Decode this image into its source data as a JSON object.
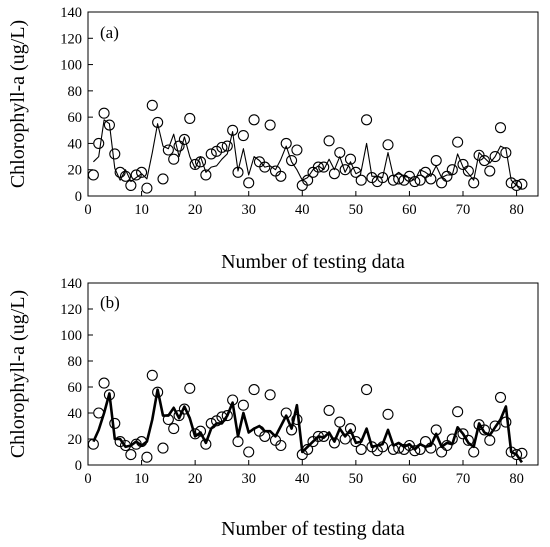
{
  "chart_data": [
    {
      "type": "scatter",
      "panel_label": "(a)",
      "xlabel": "Number of testing data",
      "ylabel": "Chlorophyll-a (ug/L)",
      "xlim": [
        0,
        84
      ],
      "ylim": [
        0,
        140
      ],
      "xticks": [
        0,
        10,
        20,
        30,
        40,
        50,
        60,
        70,
        80
      ],
      "yticks": [
        0,
        20,
        40,
        60,
        80,
        100,
        120,
        140
      ],
      "grid": false,
      "series": [
        {
          "style": "markers",
          "x": [
            1,
            2,
            3,
            4,
            5,
            6,
            7,
            8,
            9,
            10,
            11,
            12,
            13,
            14,
            15,
            16,
            17,
            18,
            19,
            20,
            21,
            22,
            23,
            24,
            25,
            26,
            27,
            28,
            29,
            30,
            31,
            32,
            33,
            34,
            35,
            36,
            37,
            38,
            39,
            40,
            41,
            42,
            43,
            44,
            45,
            46,
            47,
            48,
            49,
            50,
            51,
            52,
            53,
            54,
            55,
            56,
            57,
            58,
            59,
            60,
            61,
            62,
            63,
            64,
            65,
            66,
            67,
            68,
            69,
            70,
            71,
            72,
            73,
            74,
            75,
            76,
            77,
            78,
            79,
            80,
            81
          ],
          "y": [
            16,
            40,
            63,
            54,
            32,
            18,
            15,
            8,
            16,
            18,
            6,
            69,
            56,
            13,
            35,
            28,
            38,
            43,
            59,
            24,
            26,
            16,
            32,
            34,
            37,
            38,
            50,
            18,
            46,
            10,
            58,
            26,
            22,
            54,
            19,
            15,
            40,
            27,
            35,
            8,
            12,
            18,
            22,
            22,
            42,
            17,
            33,
            20,
            28,
            18,
            12,
            58,
            14,
            11,
            14,
            39,
            12,
            13,
            12,
            15,
            11,
            12,
            18,
            13,
            27,
            10,
            15,
            20,
            41,
            24,
            19,
            10,
            31,
            27,
            19,
            30,
            52,
            33,
            10,
            8,
            9
          ]
        },
        {
          "style": "thin-line",
          "x": [
            1,
            2,
            3,
            4,
            5,
            6,
            7,
            8,
            9,
            10,
            11,
            12,
            13,
            14,
            15,
            16,
            17,
            18,
            19,
            20,
            21,
            22,
            23,
            24,
            25,
            26,
            27,
            28,
            29,
            30,
            31,
            32,
            33,
            34,
            35,
            36,
            37,
            38,
            39,
            40,
            41,
            42,
            43,
            44,
            45,
            46,
            47,
            48,
            49,
            50,
            51,
            52,
            53,
            54,
            55,
            56,
            57,
            58,
            59,
            60,
            61,
            62,
            63,
            64,
            65,
            66,
            67,
            68,
            69,
            70,
            71,
            72,
            73,
            74,
            75,
            76,
            77,
            78,
            79,
            80,
            81
          ],
          "y": [
            26,
            30,
            58,
            55,
            21,
            12,
            20,
            11,
            14,
            17,
            13,
            33,
            55,
            38,
            36,
            47,
            30,
            45,
            30,
            21,
            30,
            18,
            22,
            23,
            28,
            32,
            49,
            19,
            36,
            16,
            30,
            27,
            22,
            23,
            20,
            28,
            38,
            26,
            20,
            12,
            14,
            20,
            23,
            20,
            28,
            20,
            30,
            18,
            26,
            17,
            19,
            40,
            15,
            15,
            14,
            33,
            15,
            18,
            15,
            14,
            12,
            20,
            18,
            15,
            23,
            14,
            16,
            16,
            32,
            22,
            17,
            12,
            33,
            29,
            25,
            30,
            38,
            36,
            12,
            8,
            6
          ]
        }
      ]
    },
    {
      "type": "scatter",
      "panel_label": "(b)",
      "xlabel": "Number of testing data",
      "ylabel": "Chlorophyll-a (ug/L)",
      "xlim": [
        0,
        84
      ],
      "ylim": [
        0,
        140
      ],
      "xticks": [
        0,
        10,
        20,
        30,
        40,
        50,
        60,
        70,
        80
      ],
      "yticks": [
        0,
        20,
        40,
        60,
        80,
        100,
        120,
        140
      ],
      "grid": false,
      "series": [
        {
          "style": "markers",
          "x": [
            1,
            2,
            3,
            4,
            5,
            6,
            7,
            8,
            9,
            10,
            11,
            12,
            13,
            14,
            15,
            16,
            17,
            18,
            19,
            20,
            21,
            22,
            23,
            24,
            25,
            26,
            27,
            28,
            29,
            30,
            31,
            32,
            33,
            34,
            35,
            36,
            37,
            38,
            39,
            40,
            41,
            42,
            43,
            44,
            45,
            46,
            47,
            48,
            49,
            50,
            51,
            52,
            53,
            54,
            55,
            56,
            57,
            58,
            59,
            60,
            61,
            62,
            63,
            64,
            65,
            66,
            67,
            68,
            69,
            70,
            71,
            72,
            73,
            74,
            75,
            76,
            77,
            78,
            79,
            80,
            81
          ],
          "y": [
            16,
            40,
            63,
            54,
            32,
            18,
            15,
            8,
            16,
            18,
            6,
            69,
            56,
            13,
            35,
            28,
            38,
            43,
            59,
            24,
            26,
            16,
            32,
            34,
            37,
            38,
            50,
            18,
            46,
            10,
            58,
            26,
            22,
            54,
            19,
            15,
            40,
            27,
            35,
            8,
            12,
            18,
            22,
            22,
            42,
            17,
            33,
            20,
            28,
            18,
            12,
            58,
            14,
            11,
            14,
            39,
            12,
            13,
            12,
            15,
            11,
            12,
            18,
            13,
            27,
            10,
            15,
            20,
            41,
            24,
            19,
            10,
            31,
            27,
            19,
            30,
            52,
            33,
            10,
            8,
            9
          ]
        },
        {
          "style": "thick-line",
          "x": [
            1,
            2,
            3,
            4,
            5,
            6,
            7,
            8,
            9,
            10,
            11,
            12,
            13,
            14,
            15,
            16,
            17,
            18,
            19,
            20,
            21,
            22,
            23,
            24,
            25,
            26,
            27,
            28,
            29,
            30,
            31,
            32,
            33,
            34,
            35,
            36,
            37,
            38,
            39,
            40,
            41,
            42,
            43,
            44,
            45,
            46,
            47,
            48,
            49,
            50,
            51,
            52,
            53,
            54,
            55,
            56,
            57,
            58,
            59,
            60,
            61,
            62,
            63,
            64,
            65,
            66,
            67,
            68,
            69,
            70,
            71,
            72,
            73,
            74,
            75,
            76,
            77,
            78,
            79,
            80,
            81
          ],
          "y": [
            18,
            27,
            40,
            55,
            20,
            20,
            14,
            15,
            18,
            15,
            18,
            35,
            58,
            38,
            38,
            44,
            36,
            45,
            36,
            22,
            25,
            17,
            28,
            32,
            32,
            38,
            48,
            22,
            40,
            25,
            28,
            30,
            26,
            26,
            22,
            30,
            38,
            28,
            46,
            10,
            14,
            18,
            22,
            21,
            25,
            18,
            28,
            22,
            27,
            17,
            18,
            28,
            14,
            15,
            16,
            27,
            15,
            17,
            14,
            16,
            12,
            16,
            14,
            15,
            24,
            14,
            17,
            16,
            29,
            24,
            17,
            14,
            32,
            25,
            23,
            29,
            35,
            45,
            10,
            8,
            2
          ]
        }
      ]
    }
  ]
}
